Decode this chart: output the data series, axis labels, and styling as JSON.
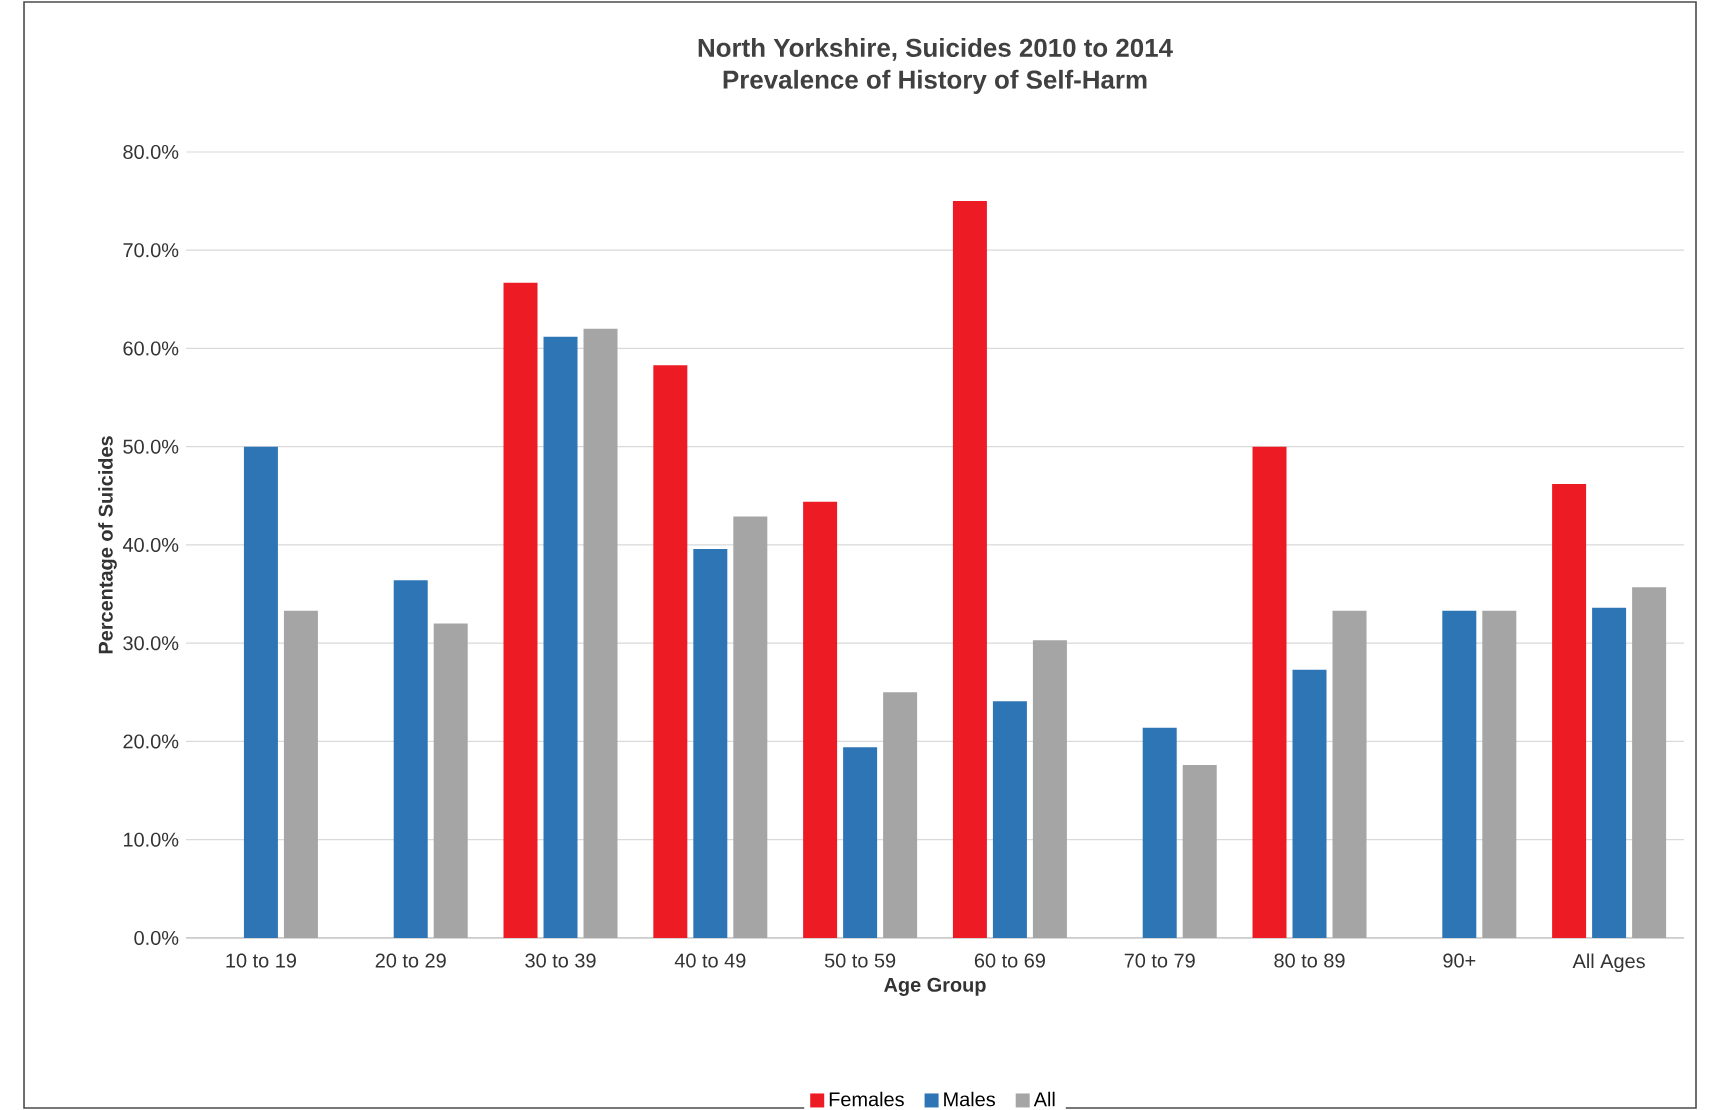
{
  "chart_data": {
    "type": "bar",
    "title": "North Yorkshire, Suicides 2010 to 2014",
    "subtitle": "Prevalence of History of Self-Harm",
    "xlabel": "Age Group",
    "ylabel": "Percentage of Suicides",
    "categories": [
      "10 to 19",
      "20 to 29",
      "30 to 39",
      "40 to 49",
      "50 to 59",
      "60 to 69",
      "70 to 79",
      "80 to 89",
      "90+",
      "All Ages"
    ],
    "series": [
      {
        "name": "Females",
        "color": "#ed1c24",
        "values": [
          0,
          0,
          66.7,
          58.3,
          44.4,
          75.0,
          0,
          50.0,
          0,
          46.2
        ]
      },
      {
        "name": "Males",
        "color": "#2e75b6",
        "values": [
          50.0,
          36.4,
          61.2,
          39.6,
          19.4,
          24.1,
          21.4,
          27.3,
          33.3,
          33.6
        ]
      },
      {
        "name": "All",
        "color": "#a5a5a5",
        "values": [
          33.3,
          32.0,
          62.0,
          42.9,
          25.0,
          30.3,
          17.6,
          33.3,
          33.3,
          35.7
        ]
      }
    ],
    "ylim": [
      0,
      80
    ],
    "yticks": [
      {
        "value": 0,
        "label": "0.0%"
      },
      {
        "value": 10,
        "label": "10.0%"
      },
      {
        "value": 20,
        "label": "20.0%"
      },
      {
        "value": 30,
        "label": "30.0%"
      },
      {
        "value": 40,
        "label": "40.0%"
      },
      {
        "value": 50,
        "label": "50.0%"
      },
      {
        "value": 60,
        "label": "60.0%"
      },
      {
        "value": 70,
        "label": "70.0%"
      },
      {
        "value": 80,
        "label": "80.0%"
      }
    ],
    "grid": "y",
    "legend": "bottom"
  }
}
